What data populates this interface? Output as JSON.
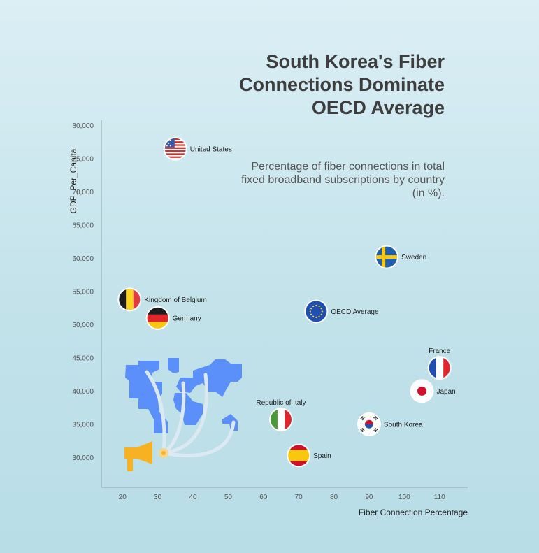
{
  "title": "South Korea's Fiber Connections Dominate OECD Average",
  "subtitle": "Percentage of fiber connections in total fixed broadband subscriptions by country (in %).",
  "chart_data": {
    "type": "scatter",
    "xlabel": "Fiber Connection Percentage",
    "ylabel": "GDP_Per_Capita",
    "xlim": [
      14,
      118
    ],
    "ylim": [
      25500,
      80800
    ],
    "xticks": [
      20,
      30,
      40,
      50,
      60,
      70,
      80,
      90,
      100,
      110
    ],
    "yticks": [
      30000,
      35000,
      40000,
      45000,
      50000,
      55000,
      60000,
      65000,
      70000,
      75000,
      80000
    ],
    "ytick_labels": [
      "30,000",
      "35,000",
      "40,000",
      "45,000",
      "50,000",
      "55,000",
      "60,000",
      "65,000",
      "70,000",
      "75,000",
      "80,000"
    ],
    "grid": false,
    "points": [
      {
        "label": "United States",
        "x": 35,
        "y": 76500,
        "flag": "us-flag-icon",
        "label_pos": "right"
      },
      {
        "label": "Sweden",
        "x": 95,
        "y": 60200,
        "flag": "sweden-flag-icon",
        "label_pos": "right"
      },
      {
        "label": "Kingdom of Belgium",
        "x": 22,
        "y": 53800,
        "flag": "belgium-flag-icon",
        "label_pos": "right"
      },
      {
        "label": "Germany",
        "x": 30,
        "y": 51000,
        "flag": "germany-flag-icon",
        "label_pos": "right"
      },
      {
        "label": "OECD Average",
        "x": 75,
        "y": 52000,
        "flag": "eu-flag-icon",
        "label_pos": "right"
      },
      {
        "label": "France",
        "x": 110,
        "y": 43500,
        "flag": "france-flag-icon",
        "label_pos": "top"
      },
      {
        "label": "Japan",
        "x": 105,
        "y": 40000,
        "flag": "japan-flag-icon",
        "label_pos": "right"
      },
      {
        "label": "South Korea",
        "x": 90,
        "y": 35000,
        "flag": "south-korea-flag-icon",
        "label_pos": "right"
      },
      {
        "label": "Republic of Italy",
        "x": 65,
        "y": 35700,
        "flag": "italy-flag-icon",
        "label_pos": "top"
      },
      {
        "label": "Spain",
        "x": 70,
        "y": 30300,
        "flag": "spain-flag-icon",
        "label_pos": "right"
      }
    ],
    "colors": {
      "axis": "#8aa4ae",
      "map": "#5b8ff9",
      "megaphone": "#f7b223",
      "signal": "#dbe9f3"
    },
    "decoration": "world-map-megaphone-icon"
  }
}
